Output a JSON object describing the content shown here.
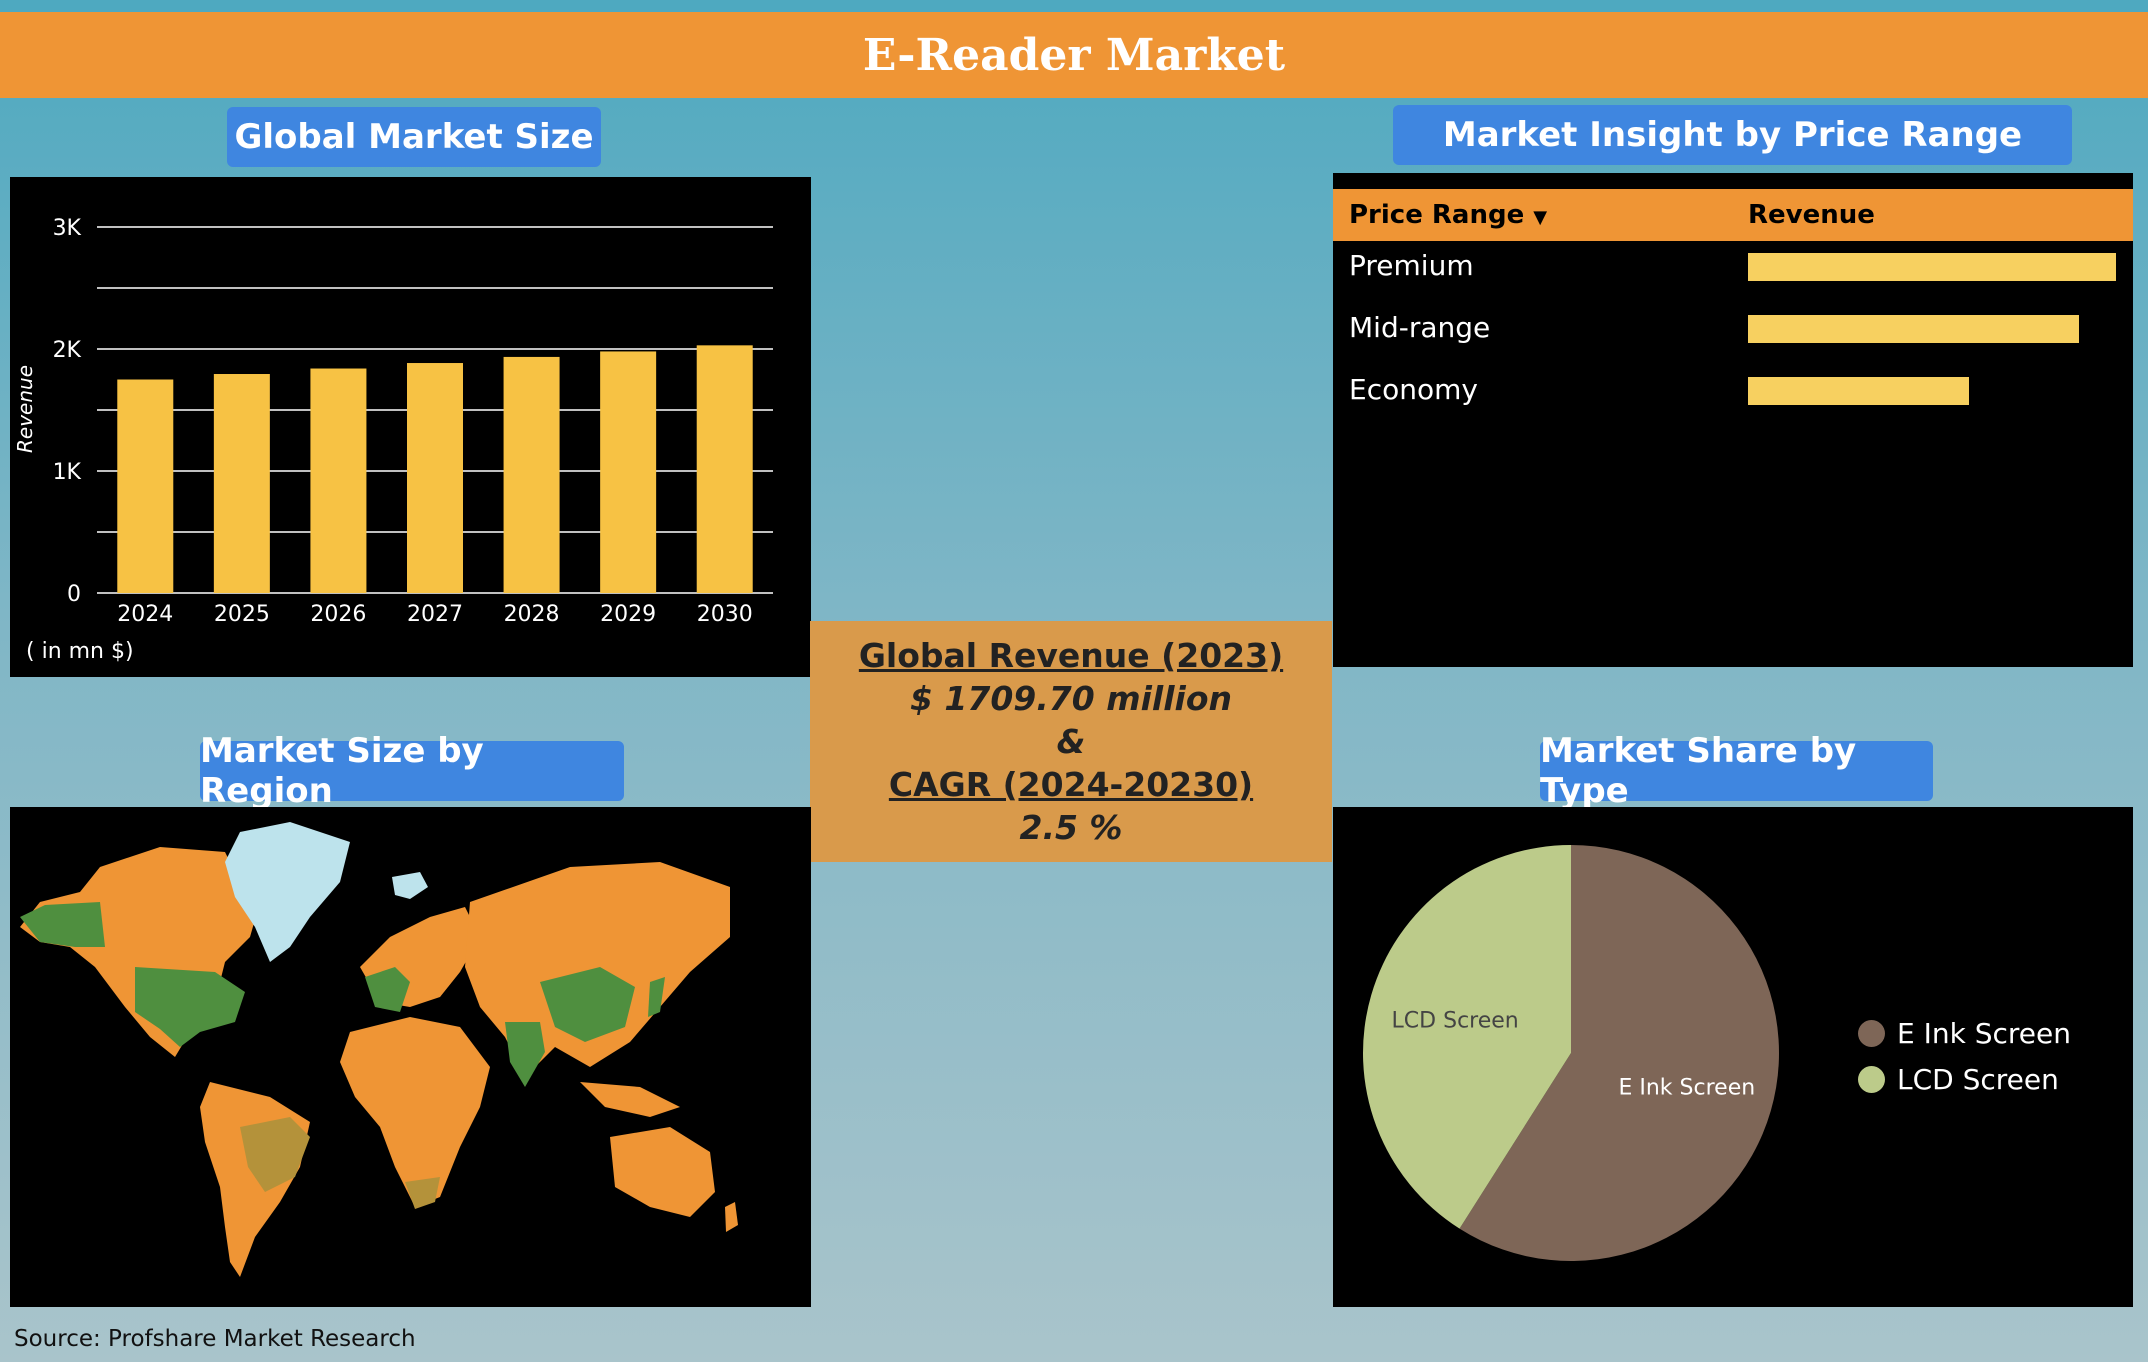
{
  "header": {
    "title": "E-Reader Market"
  },
  "sections": {
    "global_market_size": "Global Market Size",
    "price_range": "Market Insight by Price Range",
    "region": "Market Size by Region",
    "type": "Market Share by Type"
  },
  "bar_chart": {
    "unit_note": "( in mn $)"
  },
  "price_table": {
    "col_label": "Price Range",
    "col_value": "Revenue",
    "sort_icon": "triangle-down-icon"
  },
  "center": {
    "title": "Global Revenue (2023)",
    "value": "$ 1709.70 million",
    "amp": "&",
    "cagr_title": "CAGR (2024-20230)",
    "cagr_value": "2.5 %"
  },
  "source": "Source: Profshare Market Research",
  "colors": {
    "header": "#ef9535",
    "tag": "#3f86e0",
    "bar": "#f7c244",
    "table_bar": "#f7d060",
    "eink": "#7e6657",
    "lcd": "#bccb8a",
    "map_land": "#ef9535",
    "map_highlight": "#4f8f3f"
  },
  "chart_data": [
    {
      "type": "bar",
      "categories": [
        "2024",
        "2025",
        "2026",
        "2027",
        "2028",
        "2029",
        "2030"
      ],
      "values": [
        1750,
        1795,
        1840,
        1885,
        1935,
        1980,
        2030
      ],
      "ylabel": "Revenue",
      "xlabel": "",
      "ylim": [
        0,
        3000
      ],
      "yticks": [
        0,
        1000,
        2000,
        3000
      ],
      "ytick_labels": [
        "0",
        "1K",
        "2K",
        "3K"
      ],
      "grid": true
    },
    {
      "type": "bar",
      "orientation": "horizontal",
      "categories": [
        "Premium",
        "Mid-range",
        "Economy"
      ],
      "values": [
        1.0,
        0.9,
        0.6
      ],
      "value_scale": "relative"
    },
    {
      "type": "pie",
      "labels": [
        "E Ink Screen",
        "LCD Screen"
      ],
      "values": [
        59,
        41
      ],
      "legend": "right"
    }
  ]
}
